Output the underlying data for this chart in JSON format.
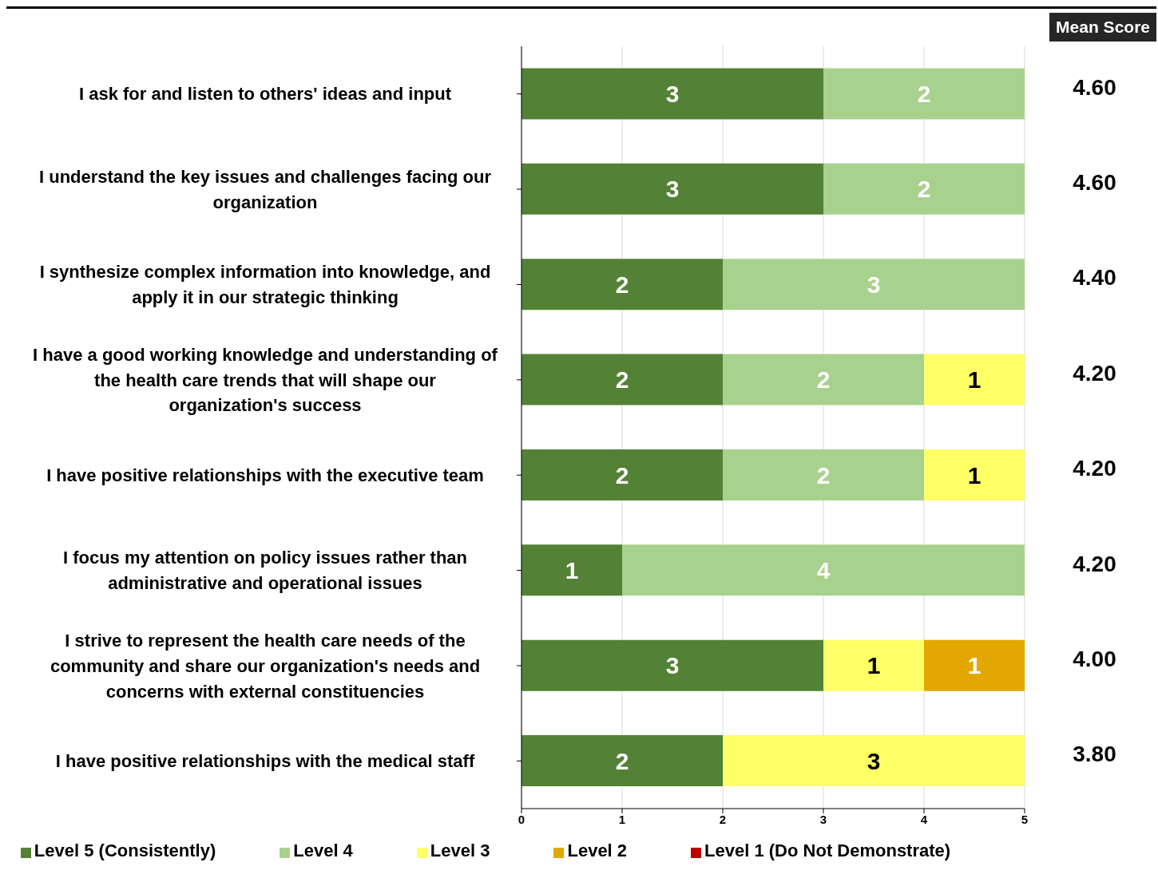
{
  "chart_data": {
    "type": "bar",
    "orientation": "horizontal",
    "stacked": true,
    "categories": [
      "I ask for and listen to others' ideas and input",
      "I understand the key issues and challenges facing our organization",
      "I synthesize complex information into knowledge, and apply it in our strategic thinking",
      "I have a good working knowledge and understanding of the health care trends that will shape our organization's success",
      "I have positive relationships with the executive team",
      "I focus my attention on policy issues rather than administrative and operational issues",
      "I strive to represent the health care needs of the community and share our organization's needs and concerns with external constituencies",
      "I have positive relationships with the medical staff"
    ],
    "series": [
      {
        "name": "Level 5 (Consistently)",
        "color": "#538135",
        "values": [
          3,
          3,
          2,
          2,
          2,
          1,
          3,
          2
        ]
      },
      {
        "name": "Level 4",
        "color": "#a9d18e",
        "values": [
          2,
          2,
          3,
          2,
          2,
          4,
          null,
          null
        ]
      },
      {
        "name": "Level 3",
        "color": "#ffff66",
        "values": [
          null,
          null,
          null,
          1,
          1,
          null,
          1,
          3
        ]
      },
      {
        "name": "Level 2",
        "color": "#e2a800",
        "values": [
          null,
          null,
          null,
          null,
          null,
          null,
          1,
          null
        ]
      },
      {
        "name": "Level 1 (Do Not Demonstrate)",
        "color": "#c00000",
        "values": [
          null,
          null,
          null,
          null,
          null,
          null,
          null,
          null
        ]
      }
    ],
    "xlim": [
      0,
      5
    ],
    "xticks": [
      0,
      1,
      2,
      3,
      4,
      5
    ],
    "grid": "x",
    "legend": "bottom",
    "data_labels": true,
    "annotations": [
      "Mean Score",
      "4.60",
      "4.60",
      "4.40",
      "4.20",
      "4.20",
      "4.20",
      "4.00",
      "3.80"
    ]
  }
}
